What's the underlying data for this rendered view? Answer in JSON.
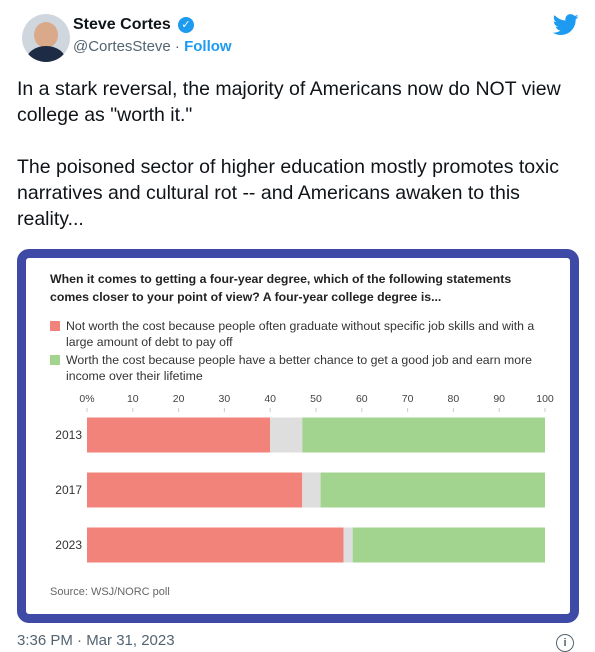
{
  "author": {
    "name": "Steve Cortes",
    "handle": "@CortesSteve",
    "follow": "Follow"
  },
  "text": [
    "In a stark reversal, the majority of Americans now do NOT view college as \"worth it.\"",
    "The poisoned sector of higher education mostly promotes toxic narratives and cultural rot -- and Americans awaken to this reality..."
  ],
  "timestamp": "3:36 PM · Mar 31, 2023",
  "chart_data": {
    "type": "stacked-bar-horizontal",
    "title": "When it comes to getting a four-year degree, which of the following statements comes closer to your point of view? A four-year college degree is...",
    "source": "Source: WSJ/NORC poll",
    "categories": [
      "2013",
      "2017",
      "2023"
    ],
    "series": [
      {
        "name": "Not worth the cost because people often graduate without specific job skills and with a large amount of debt to pay off",
        "color": "#f2837a",
        "values": [
          40,
          47,
          56
        ]
      },
      {
        "color": "#dedede",
        "values": [
          7,
          4,
          2
        ]
      },
      {
        "name": "Worth the cost because people have a better chance to get a good job and earn more income over their lifetime",
        "color": "#a3d48f",
        "values": [
          53,
          49,
          42
        ]
      }
    ],
    "xlim": [
      0,
      100
    ],
    "xticks": [
      {
        "value": 0,
        "label": "0%"
      },
      10,
      20,
      30,
      40,
      50,
      60,
      70,
      80,
      90,
      100
    ]
  }
}
